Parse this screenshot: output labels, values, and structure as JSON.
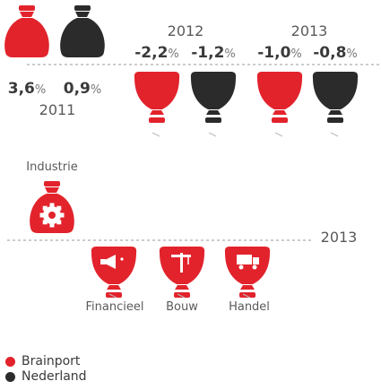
{
  "colors": {
    "brainport": "#e2232c",
    "nederland": "#2b2b2b",
    "accent_icon": "#ffffff",
    "line": "#9a9a9a"
  },
  "chart_data": {
    "type": "bar",
    "title": "",
    "panels": [
      {
        "categories": [
          "2011",
          "2012",
          "2013"
        ],
        "series": [
          {
            "name": "Brainport",
            "values": [
              3.6,
              -2.2,
              -1.0
            ]
          },
          {
            "name": "Nederland",
            "values": [
              0.9,
              -1.2,
              -0.8
            ]
          }
        ],
        "value_labels": {
          "2011": [
            "3,6%",
            "0,9%"
          ],
          "2012": [
            "-2,2%",
            "-1,2%"
          ],
          "2013": [
            "-1,0%",
            "-0,8%"
          ]
        }
      },
      {
        "year": "2013",
        "categories": [
          "Industrie",
          "Financieel",
          "Bouw",
          "Handel"
        ],
        "series": [
          {
            "name": "Brainport",
            "direction": [
              "up",
              "down",
              "down",
              "down"
            ]
          }
        ],
        "icons": [
          "gear-icon",
          "megaphone-icon",
          "crane-icon",
          "truck-icon"
        ]
      }
    ],
    "legend": [
      "Brainport",
      "Nederland"
    ],
    "legend_position": "bottom-left"
  }
}
